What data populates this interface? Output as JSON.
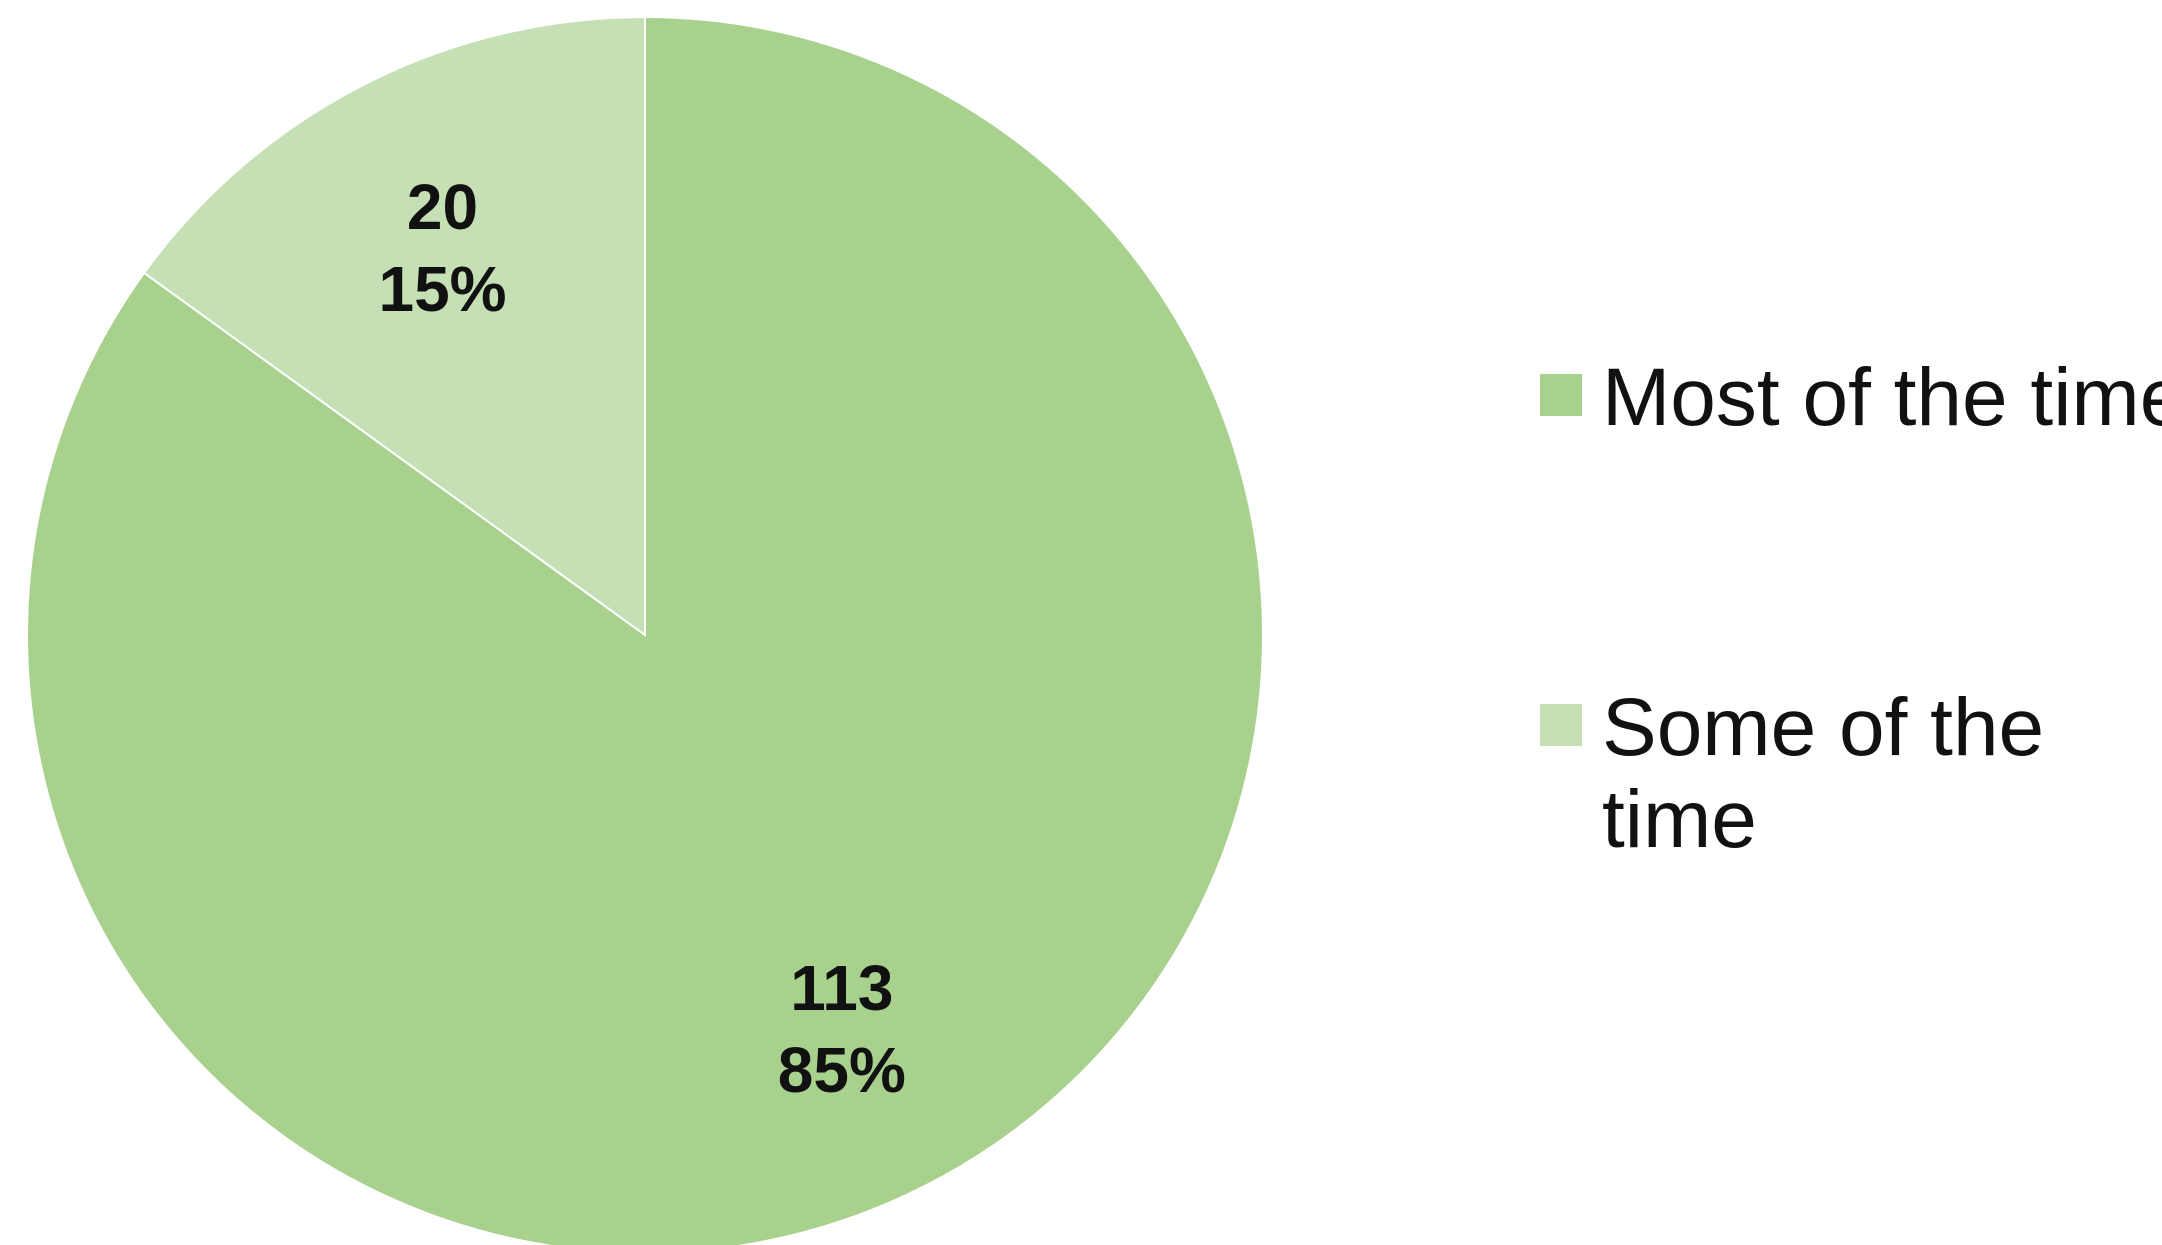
{
  "chart_data": {
    "type": "pie",
    "title": "",
    "legend_position": "right",
    "slices": [
      {
        "label": "Most of the time",
        "value": 113,
        "percent_label": "85%",
        "color": "#a9d18e"
      },
      {
        "label": "Some of the time",
        "value": 20,
        "percent_label": "15%",
        "color": "#c5e0b4"
      }
    ]
  }
}
